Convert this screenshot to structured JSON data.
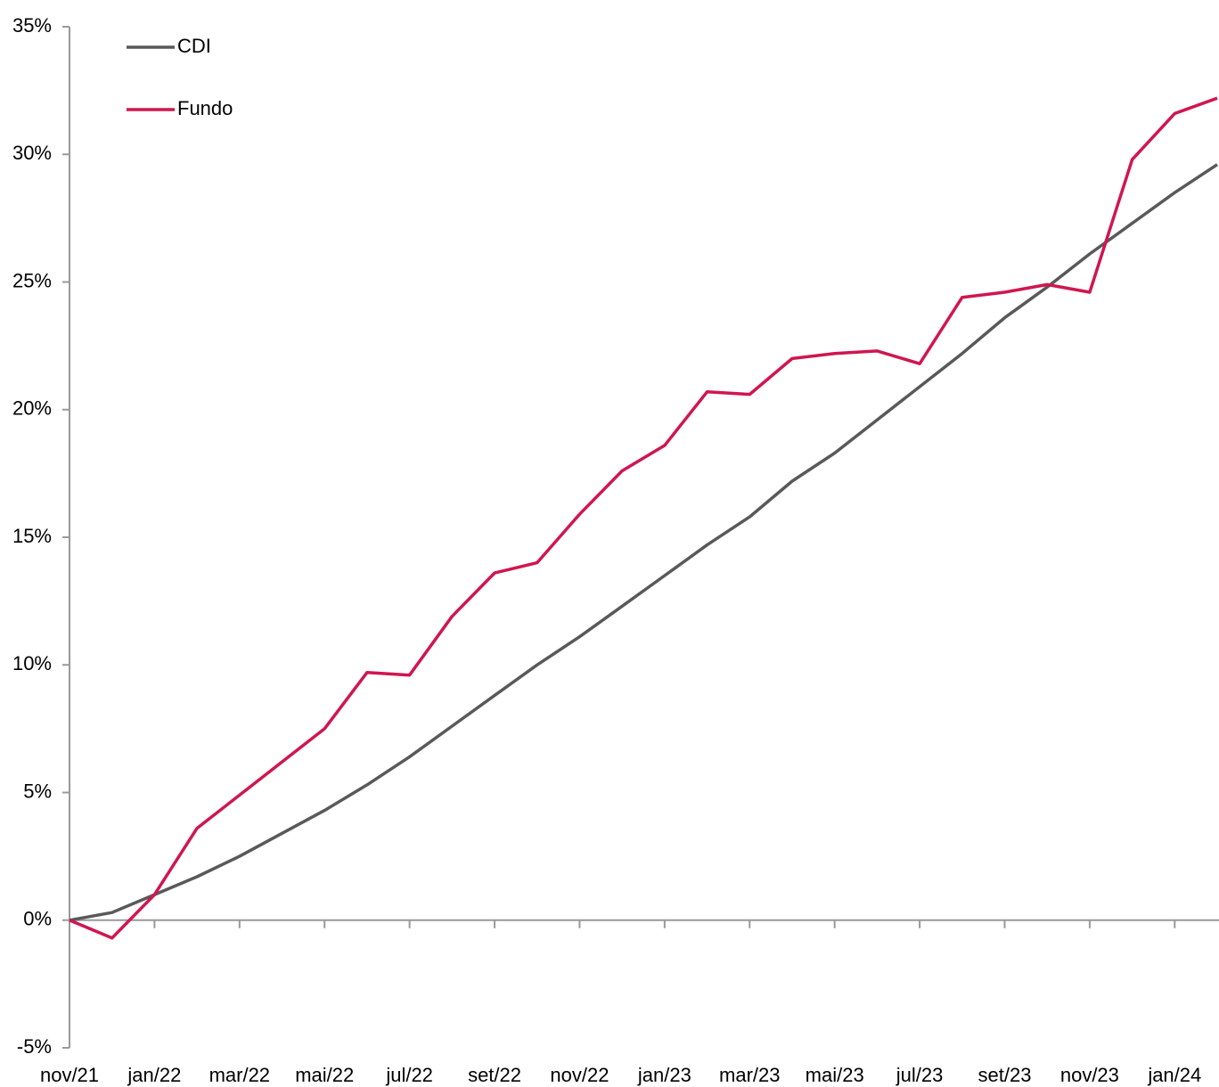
{
  "chart_data": {
    "type": "line",
    "categories": [
      "nov/21",
      null,
      "jan/22",
      null,
      "mar/22",
      null,
      "mai/22",
      null,
      "jul/22",
      null,
      "set/22",
      null,
      "nov/22",
      null,
      "jan/23",
      null,
      "mar/23",
      null,
      "mai/23",
      null,
      "jul/23",
      null,
      "set/23",
      null,
      "nov/23",
      null,
      "jan/24",
      null
    ],
    "series": [
      {
        "name": "CDI",
        "color": "#595959",
        "values": [
          0,
          0.3,
          1.0,
          1.7,
          2.5,
          3.4,
          4.3,
          5.3,
          6.4,
          7.6,
          8.8,
          10.0,
          11.1,
          12.3,
          13.5,
          14.7,
          15.8,
          17.2,
          18.3,
          19.6,
          20.9,
          22.2,
          23.6,
          24.8,
          26.1,
          27.3,
          28.5,
          29.6
        ]
      },
      {
        "name": "Fundo",
        "color": "#d0164f",
        "values": [
          0,
          -0.7,
          1.0,
          3.6,
          4.9,
          6.2,
          7.5,
          9.7,
          9.6,
          11.9,
          13.6,
          14.0,
          15.9,
          17.6,
          18.6,
          20.7,
          20.6,
          22.0,
          22.2,
          22.3,
          21.8,
          24.4,
          24.6,
          24.9,
          24.6,
          29.8,
          31.6,
          32.2
        ]
      }
    ],
    "ylim": [
      -5,
      35
    ],
    "yticks": [
      {
        "value": -5,
        "label": "-5%"
      },
      {
        "value": 0,
        "label": "0%"
      },
      {
        "value": 5,
        "label": "5%"
      },
      {
        "value": 10,
        "label": "10%"
      },
      {
        "value": 15,
        "label": "15%"
      },
      {
        "value": 20,
        "label": "20%"
      },
      {
        "value": 25,
        "label": "25%"
      },
      {
        "value": 30,
        "label": "30%"
      },
      {
        "value": 35,
        "label": "35%"
      }
    ],
    "legend": "top-left"
  }
}
